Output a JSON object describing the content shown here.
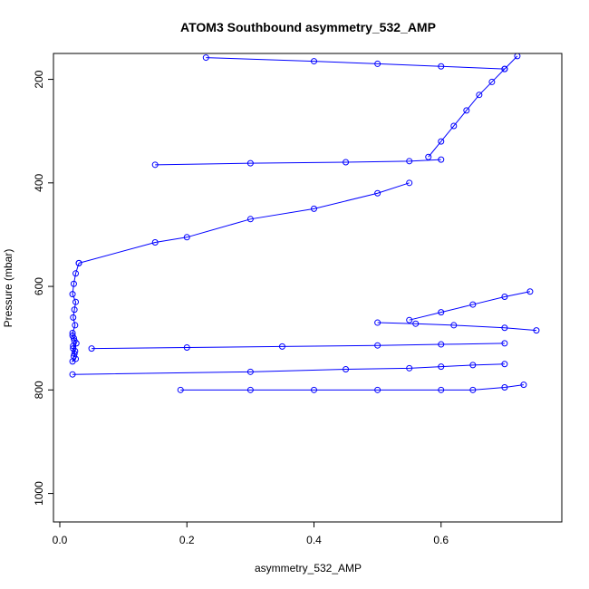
{
  "chart_data": {
    "type": "scatter",
    "title": "ATOM3 Southbound asymmetry_532_AMP",
    "xlabel": "asymmetry_532_AMP",
    "ylabel": "Pressure (mbar)",
    "xlim": [
      -0.01,
      0.79
    ],
    "ylim": [
      1055,
      150
    ],
    "y_inverted": true,
    "x_ticks": [
      0.0,
      0.2,
      0.4,
      0.6
    ],
    "x_tick_labels": [
      "0.0",
      "0.2",
      "0.4",
      "0.6"
    ],
    "y_ticks": [
      200,
      400,
      600,
      800,
      1000
    ],
    "y_tick_labels": [
      "200",
      "400",
      "600",
      "800",
      "1000"
    ],
    "grid": false,
    "legend": "none",
    "series": [
      {
        "color": "#0000ff",
        "marker": "open-circle",
        "line": true,
        "profiles": [
          {
            "x": [
              0.03,
              0.025,
              0.022,
              0.02,
              0.025,
              0.023,
              0.021,
              0.024,
              0.02,
              0.022,
              0.026,
              0.021,
              0.023,
              0.025,
              0.02,
              0.022,
              0.024,
              0.021,
              0.023,
              0.02
            ],
            "y": [
              555,
              575,
              595,
              615,
              630,
              645,
              660,
              675,
              690,
              700,
              710,
              720,
              730,
              740,
              745,
              735,
              725,
              715,
              705,
              695
            ]
          },
          {
            "x": [
              0.03,
              0.15,
              0.2,
              0.3,
              0.4,
              0.5,
              0.55
            ],
            "y": [
              555,
              515,
              505,
              470,
              450,
              420,
              400
            ]
          },
          {
            "x": [
              0.02,
              0.3,
              0.45,
              0.55,
              0.6,
              0.65,
              0.7
            ],
            "y": [
              770,
              765,
              760,
              758,
              755,
              752,
              750
            ]
          },
          {
            "x": [
              0.19,
              0.3,
              0.4,
              0.5,
              0.6,
              0.65,
              0.7,
              0.73
            ],
            "y": [
              800,
              800,
              800,
              800,
              800,
              800,
              795,
              790
            ]
          },
          {
            "x": [
              0.72,
              0.7,
              0.68,
              0.66,
              0.64,
              0.62,
              0.6,
              0.58
            ],
            "y": [
              155,
              180,
              205,
              230,
              260,
              290,
              320,
              350
            ]
          },
          {
            "x": [
              0.23,
              0.4,
              0.5,
              0.6,
              0.7
            ],
            "y": [
              158,
              165,
              170,
              175,
              180
            ]
          },
          {
            "x": [
              0.05,
              0.2,
              0.35,
              0.5,
              0.6,
              0.7
            ],
            "y": [
              720,
              718,
              716,
              714,
              712,
              710
            ]
          },
          {
            "x": [
              0.15,
              0.3,
              0.45,
              0.55,
              0.6
            ],
            "y": [
              365,
              362,
              360,
              358,
              355
            ]
          },
          {
            "x": [
              0.74,
              0.7,
              0.65,
              0.6,
              0.55
            ],
            "y": [
              610,
              620,
              635,
              650,
              665
            ]
          },
          {
            "x": [
              0.75,
              0.7,
              0.62,
              0.56,
              0.5
            ],
            "y": [
              685,
              680,
              675,
              672,
              670
            ]
          }
        ]
      }
    ]
  }
}
